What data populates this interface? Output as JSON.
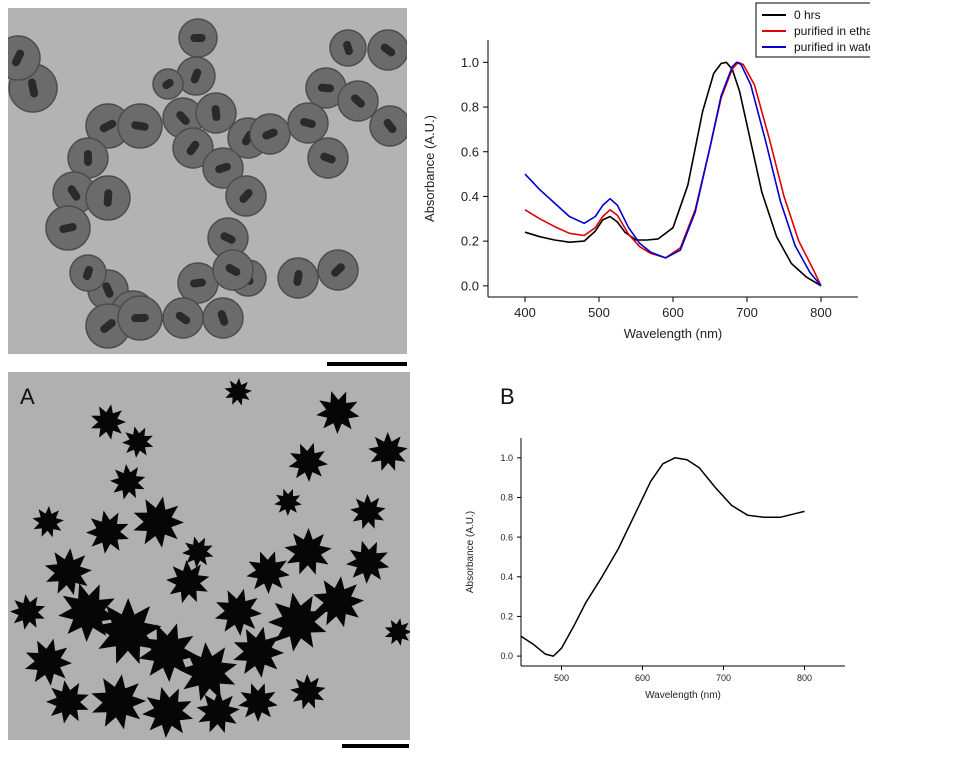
{
  "panels": {
    "top_left": {
      "kind": "micrograph",
      "scale_bar_label": ""
    },
    "bottom_left": {
      "kind": "micrograph",
      "letter": "A",
      "scale_bar_label": ""
    },
    "bottom_right": {
      "letter": "B"
    }
  },
  "colors": {
    "series_0hrs": "#000000",
    "series_ethanol": "#e00000",
    "series_water": "#0000d0",
    "axis": "#000000"
  },
  "chart_data": [
    {
      "type": "line",
      "title": "",
      "xlabel": "Wavelength (nm)",
      "ylabel": "Absorbance (A.U.)",
      "xlim": [
        350,
        850
      ],
      "ylim": [
        -0.05,
        1.1
      ],
      "xticks": [
        "400",
        "500",
        "600",
        "700",
        "800"
      ],
      "yticks": [
        "0.0",
        "0.2",
        "0.4",
        "0.6",
        "0.8",
        "1.0"
      ],
      "legend_position": "top-right",
      "grid": false,
      "series": [
        {
          "name": "0 hrs",
          "x": [
            400,
            420,
            440,
            460,
            480,
            495,
            505,
            515,
            525,
            535,
            550,
            565,
            580,
            600,
            620,
            640,
            655,
            665,
            672,
            680,
            690,
            700,
            720,
            740,
            760,
            780,
            800
          ],
          "y": [
            0.24,
            0.22,
            0.205,
            0.195,
            0.2,
            0.245,
            0.295,
            0.31,
            0.285,
            0.24,
            0.205,
            0.205,
            0.21,
            0.26,
            0.45,
            0.78,
            0.95,
            0.995,
            1.0,
            0.97,
            0.87,
            0.72,
            0.42,
            0.22,
            0.1,
            0.04,
            0.0
          ]
        },
        {
          "name": "purified in ethanol",
          "x": [
            400,
            420,
            440,
            460,
            480,
            495,
            505,
            515,
            525,
            540,
            555,
            570,
            590,
            610,
            630,
            650,
            665,
            680,
            688,
            695,
            710,
            730,
            750,
            770,
            790,
            800
          ],
          "y": [
            0.34,
            0.3,
            0.265,
            0.235,
            0.225,
            0.26,
            0.31,
            0.34,
            0.315,
            0.23,
            0.175,
            0.145,
            0.125,
            0.17,
            0.34,
            0.62,
            0.84,
            0.97,
            1.0,
            0.99,
            0.9,
            0.66,
            0.4,
            0.2,
            0.07,
            0.0
          ]
        },
        {
          "name": "purified in water",
          "x": [
            400,
            420,
            440,
            460,
            480,
            495,
            505,
            515,
            525,
            540,
            555,
            570,
            590,
            610,
            630,
            650,
            665,
            680,
            686,
            692,
            705,
            725,
            745,
            765,
            785,
            800
          ],
          "y": [
            0.5,
            0.43,
            0.37,
            0.31,
            0.28,
            0.31,
            0.36,
            0.39,
            0.36,
            0.26,
            0.19,
            0.15,
            0.125,
            0.16,
            0.33,
            0.62,
            0.85,
            0.98,
            1.0,
            0.99,
            0.9,
            0.65,
            0.38,
            0.18,
            0.06,
            0.0
          ]
        }
      ]
    },
    {
      "type": "line",
      "title": "",
      "xlabel": "Wavelength (nm)",
      "ylabel": "Absorbance (A.U.)",
      "xlim": [
        450,
        850
      ],
      "ylim": [
        -0.05,
        1.1
      ],
      "xticks": [
        "500",
        "600",
        "700",
        "800"
      ],
      "yticks": [
        "0.0",
        "0.2",
        "0.4",
        "0.6",
        "0.8",
        "1.0"
      ],
      "grid": false,
      "series": [
        {
          "x": [
            450,
            465,
            480,
            490,
            500,
            515,
            530,
            550,
            570,
            590,
            610,
            625,
            640,
            655,
            670,
            690,
            710,
            730,
            750,
            770,
            790,
            800
          ],
          "y": [
            0.1,
            0.06,
            0.01,
            0.0,
            0.04,
            0.15,
            0.27,
            0.4,
            0.54,
            0.71,
            0.88,
            0.97,
            1.0,
            0.99,
            0.95,
            0.85,
            0.76,
            0.71,
            0.7,
            0.7,
            0.72,
            0.73
          ]
        }
      ]
    }
  ]
}
